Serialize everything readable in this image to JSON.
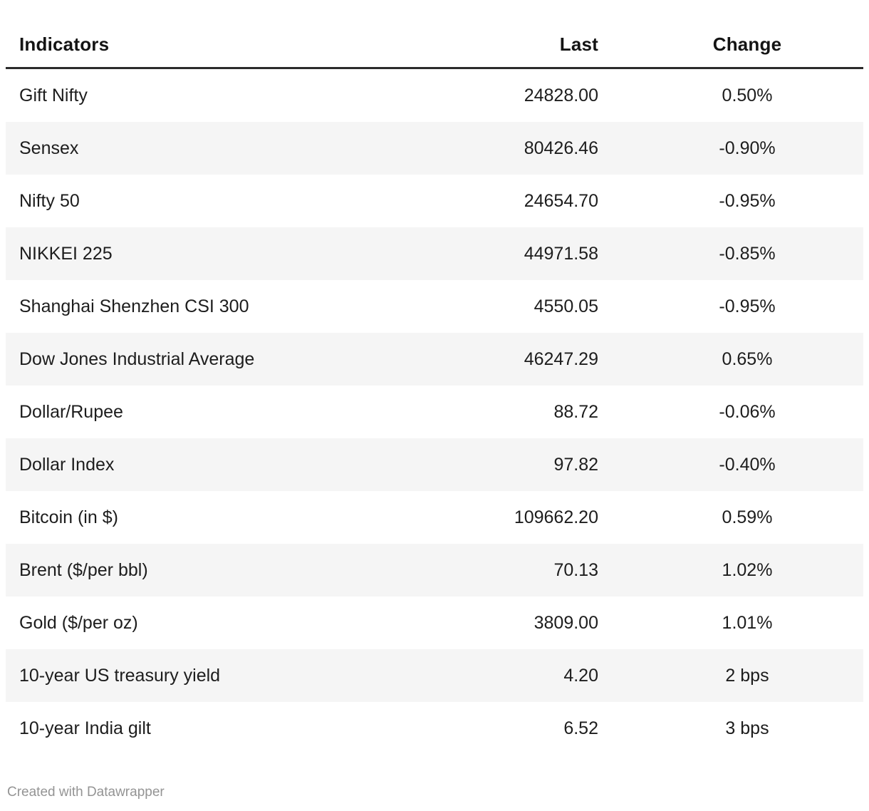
{
  "chart_data": {
    "type": "table",
    "title": "",
    "columns": [
      {
        "label": "Indicators",
        "align": "left"
      },
      {
        "label": "Last",
        "align": "right"
      },
      {
        "label": "Change",
        "align": "center"
      }
    ],
    "rows": [
      [
        "Gift Nifty",
        "24828.00",
        "0.50%"
      ],
      [
        "Sensex",
        "80426.46",
        "-0.90%"
      ],
      [
        "Nifty 50",
        "24654.70",
        "-0.95%"
      ],
      [
        "NIKKEI 225",
        "44971.58",
        "-0.85%"
      ],
      [
        "Shanghai Shenzhen CSI 300",
        "4550.05",
        "-0.95%"
      ],
      [
        "Dow Jones Industrial Average",
        "46247.29",
        "0.65%"
      ],
      [
        "Dollar/Rupee",
        "88.72",
        "-0.06%"
      ],
      [
        "Dollar Index",
        "97.82",
        "-0.40%"
      ],
      [
        "Bitcoin (in $)",
        "109662.20",
        "0.59%"
      ],
      [
        "Brent ($/per bbl)",
        "70.13",
        "1.02%"
      ],
      [
        "Gold ($/per oz)",
        "3809.00",
        "1.01%"
      ],
      [
        "10-year US treasury yield",
        "4.20",
        "2 bps"
      ],
      [
        "10-year India gilt",
        "6.52",
        "3 bps"
      ]
    ],
    "layout_hints": {
      "zebra_striping": true,
      "grid": false,
      "header_rule": true
    }
  },
  "footer": {
    "credit": "Created with Datawrapper"
  },
  "colors": {
    "row_alt_background": "#f5f5f5",
    "header_rule": "#2b2b2b",
    "body_text": "#1d1d1d",
    "header_text": "#141414",
    "footer_text": "#949494"
  }
}
